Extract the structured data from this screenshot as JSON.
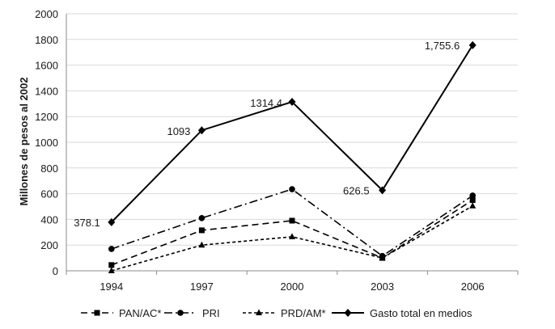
{
  "chart_data": {
    "type": "line",
    "title": "",
    "xlabel": "",
    "ylabel": "Millones de pesos al 2002",
    "categories": [
      "1994",
      "1997",
      "2000",
      "2003",
      "2006"
    ],
    "ylim": [
      0,
      2000
    ],
    "yticks": [
      "0",
      "200",
      "400",
      "600",
      "800",
      "1000",
      "1200",
      "1400",
      "1600",
      "1800",
      "2000"
    ],
    "grid": "horizontal",
    "legend": "bottom",
    "series": [
      {
        "name": "PAN/AC*",
        "values": [
          45,
          315,
          390,
          100,
          550
        ],
        "marker": "square",
        "dash": "dash",
        "color": "#000000"
      },
      {
        "name": "PRI",
        "values": [
          170,
          410,
          635,
          115,
          585
        ],
        "marker": "circle",
        "dash": "dash-dot",
        "color": "#000000"
      },
      {
        "name": "PRD/AM*",
        "values": [
          0,
          200,
          265,
          100,
          505
        ],
        "marker": "triangle",
        "dash": "short-dash",
        "color": "#000000"
      },
      {
        "name": "Gasto total en medios",
        "values": [
          378.1,
          1093,
          1314.4,
          626.5,
          1755.6
        ],
        "marker": "diamond",
        "dash": "solid",
        "color": "#000000"
      }
    ],
    "data_labels": [
      "378.1",
      "1093",
      "1314.4",
      "626.5",
      "1,755.6"
    ]
  }
}
